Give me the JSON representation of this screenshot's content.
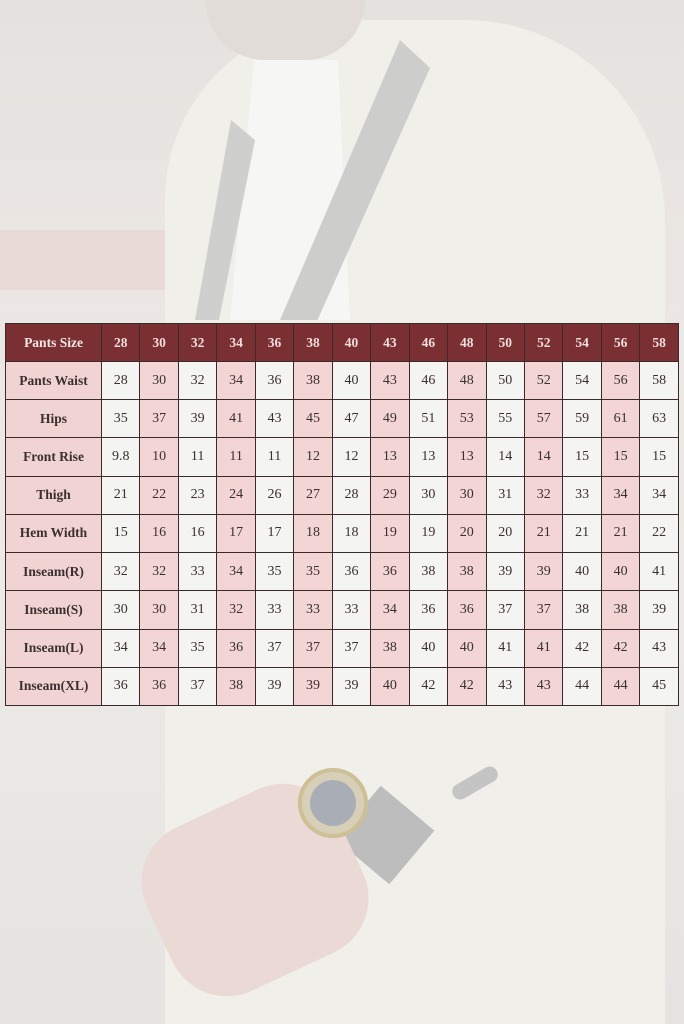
{
  "size_chart": {
    "header_label": "Pants Size",
    "sizes": [
      "28",
      "30",
      "32",
      "34",
      "36",
      "38",
      "40",
      "43",
      "46",
      "48",
      "50",
      "52",
      "54",
      "56",
      "58"
    ],
    "rows": [
      {
        "label": "Pants Waist",
        "values": [
          "28",
          "30",
          "32",
          "34",
          "36",
          "38",
          "40",
          "43",
          "46",
          "48",
          "50",
          "52",
          "54",
          "56",
          "58"
        ]
      },
      {
        "label": "Hips",
        "values": [
          "35",
          "37",
          "39",
          "41",
          "43",
          "45",
          "47",
          "49",
          "51",
          "53",
          "55",
          "57",
          "59",
          "61",
          "63"
        ]
      },
      {
        "label": "Front Rise",
        "values": [
          "9.8",
          "10",
          "11",
          "11",
          "11",
          "12",
          "12",
          "13",
          "13",
          "13",
          "14",
          "14",
          "15",
          "15",
          "15"
        ]
      },
      {
        "label": "Thigh",
        "values": [
          "21",
          "22",
          "23",
          "24",
          "26",
          "27",
          "28",
          "29",
          "30",
          "30",
          "31",
          "32",
          "33",
          "34",
          "34"
        ]
      },
      {
        "label": "Hem Width",
        "values": [
          "15",
          "16",
          "16",
          "17",
          "17",
          "18",
          "18",
          "19",
          "19",
          "20",
          "20",
          "21",
          "21",
          "21",
          "22"
        ]
      },
      {
        "label": "Inseam(R)",
        "values": [
          "32",
          "32",
          "33",
          "34",
          "35",
          "35",
          "36",
          "36",
          "38",
          "38",
          "39",
          "39",
          "40",
          "40",
          "41"
        ]
      },
      {
        "label": "Inseam(S)",
        "values": [
          "30",
          "30",
          "31",
          "32",
          "33",
          "33",
          "33",
          "34",
          "36",
          "36",
          "37",
          "37",
          "38",
          "38",
          "39"
        ]
      },
      {
        "label": "Inseam(L)",
        "values": [
          "34",
          "34",
          "35",
          "36",
          "37",
          "37",
          "37",
          "38",
          "40",
          "40",
          "41",
          "41",
          "42",
          "42",
          "43"
        ]
      },
      {
        "label": "Inseam(XL)",
        "values": [
          "36",
          "36",
          "37",
          "38",
          "39",
          "39",
          "39",
          "40",
          "42",
          "42",
          "43",
          "43",
          "44",
          "44",
          "45"
        ]
      }
    ],
    "colors": {
      "header_bg": "#7a2f33",
      "highlight_column": "#f3d5d5",
      "cell": "#f4f4f2"
    }
  }
}
